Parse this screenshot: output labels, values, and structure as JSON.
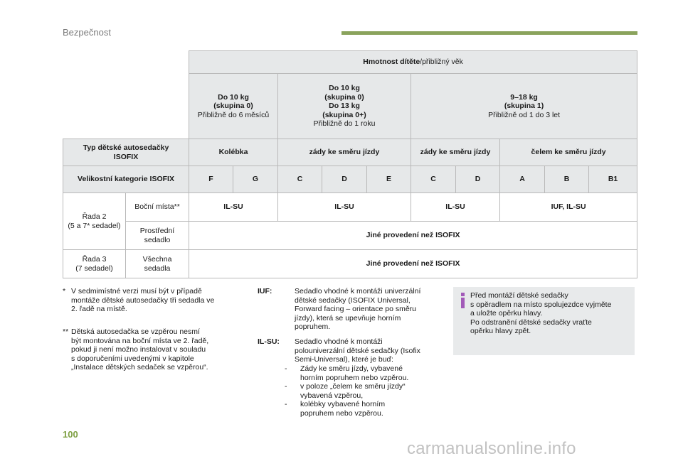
{
  "header": {
    "section_title": "Bezpečnost",
    "accent_color": "#8aa35c"
  },
  "table": {
    "weight_header_bold": "Hmotnost dítěte",
    "weight_header_rest": "/přibližný věk",
    "groups": [
      {
        "line1": "Do 10 kg",
        "line2": "(skupina 0)",
        "line3": "Přibližně do 6 měsíců"
      },
      {
        "line1": "Do 10 kg",
        "line2": "(skupina 0)",
        "line3": "Do 13 kg",
        "line4": "(skupina 0+)",
        "line5": "Přibližně do 1 roku"
      },
      {
        "line1": "9–18 kg",
        "line2": "(skupina 1)",
        "line3": "Přibližně od 1 do 3 let"
      }
    ],
    "type_label_1": "Typ dětské autosedačky",
    "type_label_2": "ISOFIX",
    "types": [
      "Kolébka",
      "zády ke směru jízdy",
      "zády ke směru jízdy",
      "čelem ke směru jízdy"
    ],
    "size_label": "Velikostní kategorie ISOFIX",
    "sizes": [
      "F",
      "G",
      "C",
      "D",
      "E",
      "C",
      "D",
      "A",
      "B",
      "B1"
    ],
    "row2_label_1": "Řada 2",
    "row2_label_2": "(5 a 7* sedadel)",
    "side_seats": "Boční místa**",
    "side_values": [
      "IL-SU",
      "IL-SU",
      "IL-SU",
      "IUF, IL-SU"
    ],
    "center_1": "Prostřední",
    "center_2": "sedadlo",
    "not_isofix": "Jiné provedení než ISOFIX",
    "row3_label_1": "Řada 3",
    "row3_label_2": "(7 sedadel)",
    "all_1": "Všechna",
    "all_2": "sedadla"
  },
  "footnotes": {
    "star_mark": "*",
    "star_lines": [
      "V sedmimístné verzi musí být v případě",
      "montáže dětské autosedačky tři sedadla ve",
      "2. řadě na místě."
    ],
    "dstar_mark": "**",
    "dstar_lines": [
      "Dětská autosedačka se vzpěrou nesmí",
      "být montována na boční místa ve 2. řadě,",
      "pokud ji není možno instalovat v souladu",
      "s doporučeními uvedenými v kapitole",
      "„Instalace dětských sedaček se vzpěrou“."
    ]
  },
  "definitions": {
    "iuf_term": "IUF:",
    "iuf_lines": [
      "Sedadlo vhodné k montáži univerzální",
      "dětské sedačky (ISOFIX Universal,",
      "Forward facing – orientace po směru",
      "jízdy), která se upevňuje horním",
      "popruhem."
    ],
    "ilsu_term": "IL-SU:",
    "ilsu_lines": [
      "Sedadlo vhodné k montáži",
      "polouniverzální dětské sedačky (Isofix",
      "Semi-Universal), které je buď:"
    ],
    "dash": "-",
    "ilsu_items": [
      [
        "Zády ke směru jízdy, vybavené",
        "horním popruhem nebo vzpěrou."
      ],
      [
        "v poloze „čelem ke směru jízdy“",
        "vybavená vzpěrou,"
      ],
      [
        "kolébky vybavené horním",
        "popruhem nebo vzpěrou."
      ]
    ]
  },
  "info_box": {
    "icon": "info-icon",
    "icon_color": "#a25ab8",
    "lines": [
      "Před montáží dětské sedačky",
      "s opěradlem na místo spolujezdce vyjměte",
      "a uložte opěrku hlavy.",
      "Po odstranění dětské sedačky vraťte",
      "opěrku hlavy zpět."
    ]
  },
  "page_number": "100",
  "watermark": "carmanualsonline.info"
}
